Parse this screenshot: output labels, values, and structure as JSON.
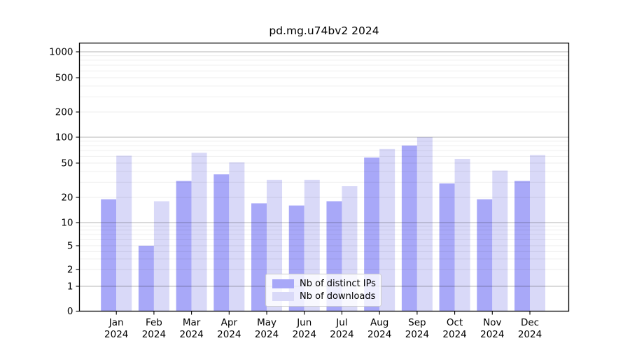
{
  "figure": {
    "title": "pd.mg.u74bv2 2024"
  },
  "chart_data": {
    "type": "bar",
    "title": "pd.mg.u74bv2 2024",
    "categories": [
      "Jan",
      "Feb",
      "Mar",
      "Apr",
      "May",
      "Jun",
      "Jul",
      "Aug",
      "Sep",
      "Oct",
      "Nov",
      "Dec"
    ],
    "year": "2024",
    "series": [
      {
        "name": "Nb of distinct IPs",
        "color": "#a8a8f8",
        "values": [
          19,
          5,
          31,
          37,
          17,
          16,
          18,
          58,
          80,
          29,
          19,
          31
        ]
      },
      {
        "name": "Nb of downloads",
        "color": "#d9d9f8",
        "values": [
          61,
          18,
          66,
          51,
          32,
          32,
          27,
          73,
          100,
          56,
          41,
          62
        ]
      }
    ],
    "yticks": [
      0,
      1,
      2,
      5,
      10,
      20,
      50,
      100,
      200,
      500,
      1000
    ],
    "xlabel": "",
    "ylabel": "",
    "yscale": "symlog",
    "ylim": [
      0,
      1400
    ],
    "grid": true,
    "legend_position": "bottom-center"
  },
  "colors": {
    "background": "#ffffff",
    "bar_distinct_ips": "#a8a8f8",
    "bar_downloads": "#d9d9f8",
    "grid_major": "rgba(0,0,0,0.29)",
    "grid_minor": "rgba(0,0,0,0.075)",
    "axis": "#000000",
    "text": "#000000",
    "legend_border": "#cccccc"
  }
}
